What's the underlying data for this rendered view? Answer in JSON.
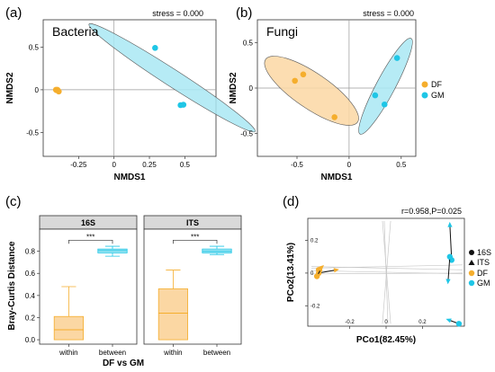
{
  "panels": {
    "a": {
      "label": "(a)",
      "tag": "Bacteria",
      "stress": "stress = 0.000"
    },
    "b": {
      "label": "(b)",
      "tag": "Fungi",
      "stress": "stress = 0.000"
    },
    "c": {
      "label": "(c)"
    },
    "d": {
      "label": "(d)",
      "annotation": "r=0.958,P=0.025"
    }
  },
  "colors": {
    "DF": "#F5AE2D",
    "GM": "#1FC6E6",
    "DF_fill": "#FBD7A3",
    "GM_fill": "#A9E8F3",
    "arrow": "#111111",
    "grid": "#C8C8C8"
  },
  "chart_data": [
    {
      "id": "a",
      "type": "scatter",
      "xlabel": "NMDS1",
      "ylabel": "NMDS2",
      "xlim": [
        -0.5,
        0.72
      ],
      "ylim": [
        -0.78,
        0.82
      ],
      "xticks": [
        -0.25,
        0,
        0.25,
        0.5
      ],
      "yticks": [
        -0.5,
        0,
        0.5
      ],
      "tick_labels_x": [
        "-0.25",
        "0",
        "0.25",
        "0.5"
      ],
      "tick_labels_y": [
        "-0.5",
        "0",
        "0.5"
      ],
      "series": [
        {
          "name": "DF",
          "points": [
            [
              -0.41,
              0.0
            ],
            [
              -0.405,
              -0.005
            ],
            [
              -0.4,
              0.0
            ],
            [
              -0.395,
              -0.01
            ],
            [
              -0.39,
              -0.02
            ]
          ]
        },
        {
          "name": "GM",
          "points": [
            [
              0.29,
              0.49
            ],
            [
              0.47,
              -0.18
            ],
            [
              0.49,
              -0.175
            ]
          ]
        }
      ],
      "ellipses": [
        {
          "series": "GM",
          "cx": 0.41,
          "cy": 0.14,
          "rx": 0.86,
          "ry": 0.06,
          "angle_deg": -47
        }
      ]
    },
    {
      "id": "b",
      "type": "scatter",
      "xlabel": "NMDS1",
      "ylabel": "NMDS2",
      "xlim": [
        -0.88,
        0.64
      ],
      "ylim": [
        -0.75,
        0.75
      ],
      "xticks": [
        -0.5,
        0,
        0.5
      ],
      "yticks": [
        -0.5,
        0,
        0.5
      ],
      "tick_labels_x": [
        "-0.5",
        "0",
        "0.5"
      ],
      "tick_labels_y": [
        "-0.5",
        "0",
        "0.5"
      ],
      "legend": [
        "DF",
        "GM"
      ],
      "series": [
        {
          "name": "DF",
          "points": [
            [
              -0.52,
              0.08
            ],
            [
              -0.44,
              0.15
            ],
            [
              -0.14,
              -0.32
            ]
          ]
        },
        {
          "name": "GM",
          "points": [
            [
              0.25,
              -0.08
            ],
            [
              0.34,
              -0.18
            ],
            [
              0.46,
              0.33
            ]
          ]
        }
      ],
      "ellipses": [
        {
          "series": "DF",
          "cx": -0.36,
          "cy": -0.03,
          "rx": 0.56,
          "ry": 0.17,
          "angle_deg": -38
        },
        {
          "series": "GM",
          "cx": 0.35,
          "cy": 0.02,
          "rx": 0.58,
          "ry": 0.09,
          "angle_deg": 65
        }
      ]
    },
    {
      "id": "c",
      "type": "box",
      "ylabel": "Bray-Curtis Distance",
      "xlabel": "DF vs GM",
      "ylim": [
        -0.04,
        1.0
      ],
      "yticks": [
        0.0,
        0.2,
        0.4,
        0.6,
        0.8
      ],
      "tick_labels_y": [
        "0.0",
        "0.2",
        "0.4",
        "0.6",
        "0.8"
      ],
      "categories": [
        "within",
        "between"
      ],
      "facets": [
        {
          "title": "16S",
          "significance": "***",
          "boxes": [
            {
              "category": "within",
              "min": 0.0,
              "q1": 0.0,
              "median": 0.09,
              "q3": 0.21,
              "max": 0.48,
              "color": "DF"
            },
            {
              "category": "between",
              "min": 0.755,
              "q1": 0.785,
              "median": 0.805,
              "q3": 0.82,
              "max": 0.845,
              "color": "GM"
            }
          ]
        },
        {
          "title": "ITS",
          "significance": "***",
          "boxes": [
            {
              "category": "within",
              "min": 0.0,
              "q1": 0.0,
              "median": 0.24,
              "q3": 0.46,
              "max": 0.63,
              "color": "DF"
            },
            {
              "category": "between",
              "min": 0.77,
              "q1": 0.785,
              "median": 0.8,
              "q3": 0.82,
              "max": 0.845,
              "color": "GM"
            }
          ]
        }
      ]
    },
    {
      "id": "d",
      "type": "procrustes",
      "xlabel": "PCo1(82.45%)",
      "ylabel": "PCo2(13.41%)",
      "xlim": [
        -0.43,
        0.43
      ],
      "ylim": [
        -0.325,
        0.335
      ],
      "xticks": [
        -0.2,
        0,
        0.2
      ],
      "yticks": [
        -0.2,
        0,
        0.2
      ],
      "tick_labels_x": [
        "-0.2",
        "0",
        "0.2"
      ],
      "tick_labels_y": [
        "-0.2",
        "0",
        "0.2"
      ],
      "legend": [
        "16S",
        "ITS",
        "DF",
        "GM"
      ],
      "pairs": [
        {
          "group": "DF",
          "from": [
            -0.37,
            0.0
          ],
          "to": [
            -0.27,
            0.02
          ]
        },
        {
          "group": "DF",
          "from": [
            -0.37,
            0.02
          ],
          "to": [
            -0.35,
            0.04
          ]
        },
        {
          "group": "DF",
          "from": [
            -0.38,
            -0.02
          ],
          "to": [
            -0.355,
            0.03
          ]
        },
        {
          "group": "GM",
          "from": [
            0.36,
            0.08
          ],
          "to": [
            0.35,
            0.3
          ]
        },
        {
          "group": "GM",
          "from": [
            0.35,
            0.1
          ],
          "to": [
            0.34,
            -0.055
          ]
        },
        {
          "group": "GM",
          "from": [
            0.4,
            -0.31
          ],
          "to": [
            0.34,
            -0.285
          ]
        }
      ],
      "ref_lines": [
        [
          [
            -0.41,
            0.04
          ],
          [
            0.42,
            0.02
          ]
        ],
        [
          [
            -0.41,
            0.03
          ],
          [
            0.42,
            0.05
          ]
        ],
        [
          [
            -0.41,
            -0.005
          ],
          [
            0.42,
            0.0
          ]
        ],
        [
          [
            -0.41,
            0.015
          ],
          [
            0.42,
            -0.005
          ]
        ],
        [
          [
            -0.02,
            0.32
          ],
          [
            0.025,
            -0.31
          ]
        ],
        [
          [
            0.025,
            0.32
          ],
          [
            -0.02,
            -0.31
          ]
        ],
        [
          [
            -0.01,
            0.32
          ],
          [
            0.01,
            -0.31
          ]
        ]
      ]
    }
  ]
}
